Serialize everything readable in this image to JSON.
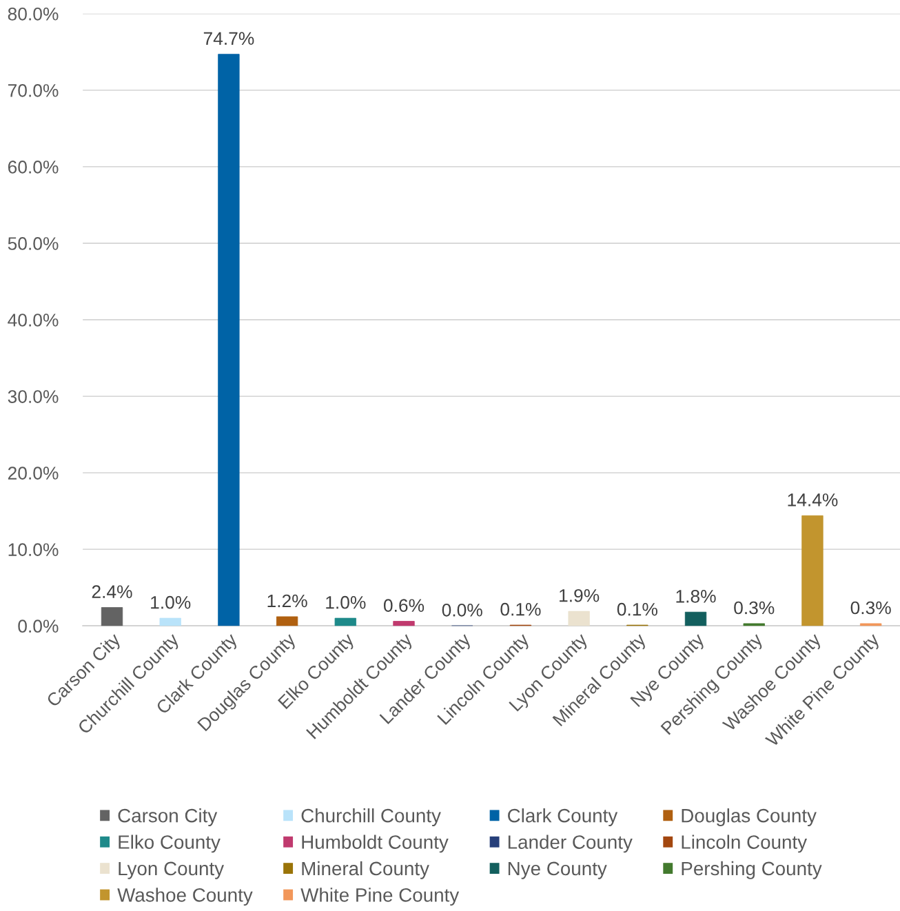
{
  "chart_data": {
    "type": "bar",
    "categories": [
      "Carson City",
      "Churchill County",
      "Clark County",
      "Douglas County",
      "Elko County",
      "Humboldt County",
      "Lander County",
      "Lincoln County",
      "Lyon County",
      "Mineral County",
      "Nye County",
      "Pershing County",
      "Washoe County",
      "White Pine County"
    ],
    "stacked": true,
    "series": [
      {
        "name": "Carson City",
        "color": "#636363",
        "values": [
          2.4,
          null,
          null,
          null,
          null,
          null,
          null,
          null,
          null,
          null,
          null,
          null,
          null,
          null
        ],
        "value_labels": [
          "2.4%",
          null,
          null,
          null,
          null,
          null,
          null,
          null,
          null,
          null,
          null,
          null,
          null,
          null
        ]
      },
      {
        "name": "Churchill County",
        "color": "#b9e3fa",
        "values": [
          null,
          1.0,
          null,
          null,
          null,
          null,
          null,
          null,
          null,
          null,
          null,
          null,
          null,
          null
        ],
        "value_labels": [
          null,
          "1.0%",
          null,
          null,
          null,
          null,
          null,
          null,
          null,
          null,
          null,
          null,
          null,
          null
        ]
      },
      {
        "name": "Clark County",
        "color": "#0063a6",
        "values": [
          null,
          null,
          74.7,
          null,
          null,
          null,
          null,
          null,
          null,
          null,
          null,
          null,
          null,
          null
        ],
        "value_labels": [
          null,
          null,
          "74.7%",
          null,
          null,
          null,
          null,
          null,
          null,
          null,
          null,
          null,
          null,
          null
        ]
      },
      {
        "name": "Douglas County",
        "color": "#b06010",
        "values": [
          null,
          null,
          null,
          1.2,
          null,
          null,
          null,
          null,
          null,
          null,
          null,
          null,
          null,
          null
        ],
        "value_labels": [
          null,
          null,
          null,
          "1.2%",
          null,
          null,
          null,
          null,
          null,
          null,
          null,
          null,
          null,
          null
        ]
      },
      {
        "name": "Elko County",
        "color": "#1e8a8a",
        "values": [
          null,
          null,
          null,
          null,
          1.0,
          null,
          null,
          null,
          null,
          null,
          null,
          null,
          null,
          null
        ],
        "value_labels": [
          null,
          null,
          null,
          null,
          "1.0%",
          null,
          null,
          null,
          null,
          null,
          null,
          null,
          null,
          null
        ]
      },
      {
        "name": "Humboldt County",
        "color": "#c03a6e",
        "values": [
          null,
          null,
          null,
          null,
          null,
          0.6,
          null,
          null,
          null,
          null,
          null,
          null,
          null,
          null
        ],
        "value_labels": [
          null,
          null,
          null,
          null,
          null,
          "0.6%",
          null,
          null,
          null,
          null,
          null,
          null,
          null,
          null
        ]
      },
      {
        "name": "Lander County",
        "color": "#263f7a",
        "values": [
          null,
          null,
          null,
          null,
          null,
          null,
          0.0,
          null,
          null,
          null,
          null,
          null,
          null,
          null
        ],
        "value_labels": [
          null,
          null,
          null,
          null,
          null,
          null,
          "0.0%",
          null,
          null,
          null,
          null,
          null,
          null,
          null
        ]
      },
      {
        "name": "Lincoln County",
        "color": "#a3470f",
        "values": [
          null,
          null,
          null,
          null,
          null,
          null,
          null,
          0.1,
          null,
          null,
          null,
          null,
          null,
          null
        ],
        "value_labels": [
          null,
          null,
          null,
          null,
          null,
          null,
          null,
          "0.1%",
          null,
          null,
          null,
          null,
          null,
          null
        ]
      },
      {
        "name": "Lyon County",
        "color": "#ebe2cf",
        "values": [
          null,
          null,
          null,
          null,
          null,
          null,
          null,
          null,
          1.9,
          null,
          null,
          null,
          null,
          null
        ],
        "value_labels": [
          null,
          null,
          null,
          null,
          null,
          null,
          null,
          null,
          "1.9%",
          null,
          null,
          null,
          null,
          null
        ]
      },
      {
        "name": "Mineral County",
        "color": "#9a7408",
        "values": [
          null,
          null,
          null,
          null,
          null,
          null,
          null,
          null,
          null,
          0.1,
          null,
          null,
          null,
          null
        ],
        "value_labels": [
          null,
          null,
          null,
          null,
          null,
          null,
          null,
          null,
          null,
          "0.1%",
          null,
          null,
          null,
          null
        ]
      },
      {
        "name": "Nye County",
        "color": "#135f5e",
        "values": [
          null,
          null,
          null,
          null,
          null,
          null,
          null,
          null,
          null,
          null,
          1.8,
          null,
          null,
          null
        ],
        "value_labels": [
          null,
          null,
          null,
          null,
          null,
          null,
          null,
          null,
          null,
          null,
          "1.8%",
          null,
          null,
          null
        ]
      },
      {
        "name": "Pershing County",
        "color": "#437a2e",
        "values": [
          null,
          null,
          null,
          null,
          null,
          null,
          null,
          null,
          null,
          null,
          null,
          0.3,
          null,
          null
        ],
        "value_labels": [
          null,
          null,
          null,
          null,
          null,
          null,
          null,
          null,
          null,
          null,
          null,
          "0.3%",
          null,
          null
        ]
      },
      {
        "name": "Washoe County",
        "color": "#c2952e",
        "values": [
          null,
          null,
          null,
          null,
          null,
          null,
          null,
          null,
          null,
          null,
          null,
          null,
          14.4,
          null
        ],
        "value_labels": [
          null,
          null,
          null,
          null,
          null,
          null,
          null,
          null,
          null,
          null,
          null,
          null,
          "14.4%",
          null
        ]
      },
      {
        "name": "White Pine County",
        "color": "#f2975a",
        "values": [
          null,
          null,
          null,
          null,
          null,
          null,
          null,
          null,
          null,
          null,
          null,
          null,
          null,
          0.3
        ],
        "value_labels": [
          null,
          null,
          null,
          null,
          null,
          null,
          null,
          null,
          null,
          null,
          null,
          null,
          null,
          "0.3%"
        ]
      }
    ],
    "ylim": [
      0,
      80
    ],
    "yticks": [
      {
        "value": 0,
        "label": "0.0%"
      },
      {
        "value": 10,
        "label": "10.0%"
      },
      {
        "value": 20,
        "label": "20.0%"
      },
      {
        "value": 30,
        "label": "30.0%"
      },
      {
        "value": 40,
        "label": "40.0%"
      },
      {
        "value": 50,
        "label": "50.0%"
      },
      {
        "value": 60,
        "label": "60.0%"
      },
      {
        "value": 70,
        "label": "70.0%"
      },
      {
        "value": 80,
        "label": "80.0%"
      }
    ],
    "grid": "y",
    "legend": "bottom"
  }
}
